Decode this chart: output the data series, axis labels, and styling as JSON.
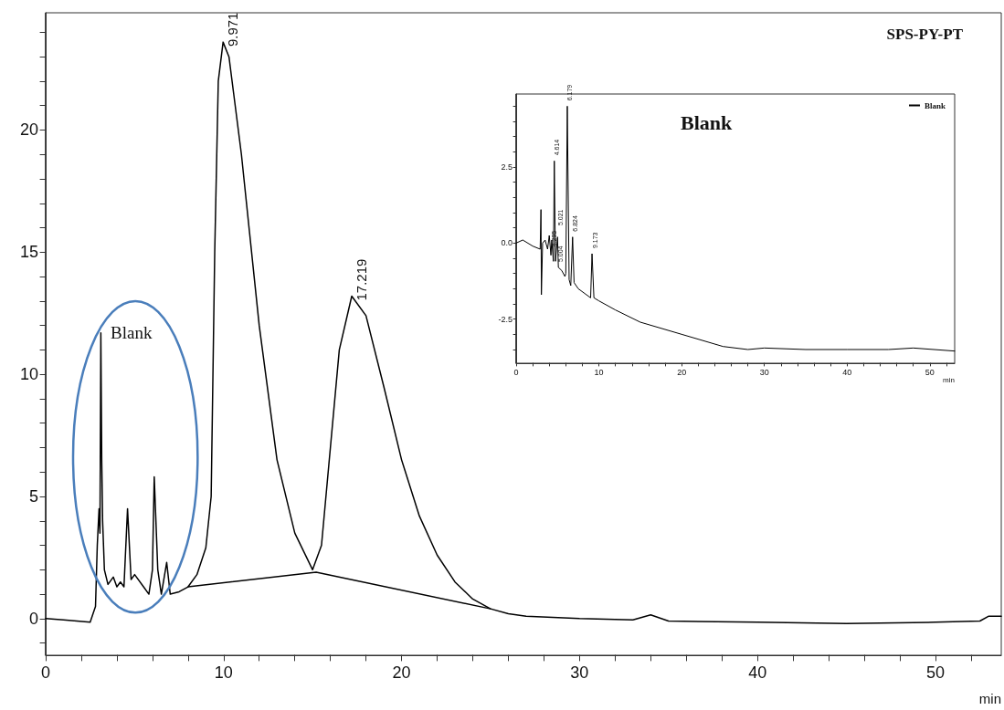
{
  "chart_data": [
    {
      "type": "line",
      "title": "SPS-PY-PT",
      "xlabel": "min",
      "xlim": [
        0,
        53.7
      ],
      "ylim": [
        -1.5,
        24.8
      ],
      "xticks": [
        0,
        {
          "value": 2,
          "label": null
        },
        {
          "value": 4,
          "label": null
        },
        {
          "value": 6,
          "label": null
        },
        {
          "value": 8,
          "label": null
        },
        10,
        {
          "value": 12,
          "label": null
        },
        {
          "value": 14,
          "label": null
        },
        {
          "value": 16,
          "label": null
        },
        {
          "value": 18,
          "label": null
        },
        20,
        {
          "value": 22,
          "label": null
        },
        {
          "value": 24,
          "label": null
        },
        {
          "value": 26,
          "label": null
        },
        {
          "value": 28,
          "label": null
        },
        30,
        {
          "value": 32,
          "label": null
        },
        {
          "value": 34,
          "label": null
        },
        {
          "value": 36,
          "label": null
        },
        {
          "value": 38,
          "label": null
        },
        40,
        {
          "value": 42,
          "label": null
        },
        {
          "value": 44,
          "label": null
        },
        {
          "value": 46,
          "label": null
        },
        {
          "value": 48,
          "label": null
        },
        50,
        {
          "value": 52,
          "label": null
        }
      ],
      "yticks": [
        {
          "value": -1,
          "label": null
        },
        0,
        {
          "value": 1,
          "label": null
        },
        {
          "value": 2,
          "label": null
        },
        {
          "value": 3,
          "label": null
        },
        {
          "value": 4,
          "label": null
        },
        5,
        {
          "value": 6,
          "label": null
        },
        {
          "value": 7,
          "label": null
        },
        {
          "value": 8,
          "label": null
        },
        {
          "value": 9,
          "label": null
        },
        10,
        {
          "value": 11,
          "label": null
        },
        {
          "value": 12,
          "label": null
        },
        {
          "value": 13,
          "label": null
        },
        {
          "value": 14,
          "label": null
        },
        15,
        {
          "value": 16,
          "label": null
        },
        {
          "value": 17,
          "label": null
        },
        {
          "value": 18,
          "label": null
        },
        {
          "value": 19,
          "label": null
        },
        20,
        {
          "value": 21,
          "label": null
        },
        {
          "value": 22,
          "label": null
        },
        {
          "value": 23,
          "label": null
        },
        {
          "value": 24,
          "label": null
        }
      ],
      "grid": false,
      "legend": false,
      "marker": "none",
      "line_style": "solid",
      "series": [
        {
          "color": "#000000",
          "x": [
            0,
            1,
            2.5,
            2.8,
            2.9,
            3.0,
            3.05,
            3.1,
            3.15,
            3.2,
            3.3,
            3.5,
            3.8,
            4.0,
            4.2,
            4.4,
            4.6,
            4.8,
            5.0,
            5.5,
            5.8,
            6.0,
            6.1,
            6.3,
            6.5,
            6.8,
            7.0,
            7.5,
            8.0,
            8.5,
            9.0,
            9.3,
            9.5,
            9.7,
            9.97,
            10.3,
            11,
            12,
            13,
            14,
            15,
            15.5,
            16,
            16.5,
            17.2,
            18,
            19,
            20,
            21,
            22,
            23,
            24,
            25,
            26,
            27,
            30,
            33,
            34,
            35,
            40,
            45,
            50,
            52.5,
            53,
            53.7
          ],
          "values": [
            0,
            -0.05,
            -0.15,
            0.5,
            3,
            4.5,
            3.5,
            11.7,
            6.5,
            4,
            2,
            1.4,
            1.7,
            1.3,
            1.5,
            1.3,
            4.5,
            1.6,
            1.8,
            1.3,
            1.0,
            2,
            5.8,
            2,
            1.0,
            2.3,
            1.0,
            1.1,
            1.3,
            1.8,
            2.9,
            5,
            15,
            22,
            23.6,
            23.0,
            19,
            12,
            6.5,
            3.5,
            2.0,
            3,
            7,
            11,
            13.2,
            12.4,
            9.5,
            6.5,
            4.2,
            2.6,
            1.5,
            0.8,
            0.4,
            0.2,
            0.1,
            0.0,
            -0.05,
            0.15,
            -0.1,
            -0.15,
            -0.2,
            -0.15,
            -0.1,
            0.1,
            0.1
          ]
        },
        {
          "color": "#000000",
          "x": [
            8,
            15.2,
            25
          ],
          "values": [
            1.3,
            1.9,
            0.4
          ]
        }
      ],
      "annotations": [
        {
          "text": "9.971",
          "x": 9.971,
          "y": 23.6
        },
        {
          "text": "17.219",
          "x": 17.219,
          "y": 13.2
        },
        "Blank"
      ]
    },
    {
      "type": "line",
      "title": "Blank",
      "xlabel": "min",
      "xlim": [
        0,
        53
      ],
      "ylim": [
        -3.95,
        4.9
      ],
      "xticks": [
        0,
        {
          "value": 2,
          "label": null
        },
        {
          "value": 4,
          "label": null
        },
        {
          "value": 6,
          "label": null
        },
        {
          "value": 8,
          "label": null
        },
        10,
        {
          "value": 12,
          "label": null
        },
        {
          "value": 14,
          "label": null
        },
        {
          "value": 16,
          "label": null
        },
        {
          "value": 18,
          "label": null
        },
        20,
        {
          "value": 22,
          "label": null
        },
        {
          "value": 24,
          "label": null
        },
        {
          "value": 26,
          "label": null
        },
        {
          "value": 28,
          "label": null
        },
        30,
        {
          "value": 32,
          "label": null
        },
        {
          "value": 34,
          "label": null
        },
        {
          "value": 36,
          "label": null
        },
        {
          "value": 38,
          "label": null
        },
        40,
        {
          "value": 42,
          "label": null
        },
        {
          "value": 44,
          "label": null
        },
        {
          "value": 46,
          "label": null
        },
        {
          "value": 48,
          "label": null
        },
        50,
        {
          "value": 52,
          "label": null
        }
      ],
      "yticks": [
        {
          "value": -3.5,
          "label": null
        },
        {
          "value": -3,
          "label": null
        },
        {
          "value": -2.5,
          "label": "-2.5"
        },
        {
          "value": -2,
          "label": null
        },
        {
          "value": -1.5,
          "label": null
        },
        {
          "value": -1,
          "label": null
        },
        {
          "value": -0.5,
          "label": null
        },
        {
          "value": 0,
          "label": "0.0"
        },
        {
          "value": 0.5,
          "label": null
        },
        {
          "value": 1,
          "label": null
        },
        {
          "value": 1.5,
          "label": null
        },
        {
          "value": 2,
          "label": null
        },
        {
          "value": 2.5,
          "label": "2.5"
        },
        {
          "value": 3,
          "label": null
        },
        {
          "value": 3.5,
          "label": null
        },
        {
          "value": 4,
          "label": null
        },
        {
          "value": 4.5,
          "label": null
        }
      ],
      "grid": false,
      "legend": "top right",
      "marker": "none",
      "line_style": "solid",
      "series": [
        {
          "name": "Blank",
          "color": "#000000",
          "x": [
            0,
            0.8,
            2,
            2.9,
            3.0,
            3.05,
            3.2,
            3.5,
            3.8,
            4.0,
            4.2,
            4.3,
            4.5,
            4.61,
            4.75,
            5.0,
            5.1,
            5.5,
            5.9,
            6.0,
            6.18,
            6.4,
            6.6,
            6.82,
            7.0,
            7.5,
            8.5,
            9.0,
            9.17,
            9.4,
            10,
            12,
            15,
            20,
            25,
            28,
            30,
            35,
            40,
            45,
            48,
            53
          ],
          "values": [
            0,
            0.1,
            -0.1,
            -0.2,
            1.1,
            -1.7,
            0.0,
            0.1,
            -0.2,
            0.25,
            -0.4,
            0.1,
            -0.6,
            2.7,
            -0.6,
            0.2,
            -0.8,
            -0.9,
            -1.1,
            -1.0,
            4.5,
            -1.2,
            -1.4,
            0.2,
            -1.3,
            -1.5,
            -1.7,
            -1.8,
            -0.35,
            -1.8,
            -1.9,
            -2.2,
            -2.6,
            -3.0,
            -3.4,
            -3.5,
            -3.45,
            -3.5,
            -3.5,
            -3.5,
            -3.45,
            -3.55
          ]
        }
      ],
      "annotations": [
        {
          "text": "4.295",
          "x": 4.295,
          "y": -0.3
        },
        {
          "text": "4.614",
          "x": 4.614,
          "y": 2.7
        },
        {
          "text": "5.004",
          "x": 5.004,
          "y": -0.8
        },
        {
          "text": "5.021",
          "x": 5.021,
          "y": 0.4
        },
        {
          "text": "6.179",
          "x": 6.179,
          "y": 4.5
        },
        {
          "text": "6.824",
          "x": 6.824,
          "y": 0.2
        },
        {
          "text": "9.173",
          "x": 9.173,
          "y": -0.35
        }
      ]
    }
  ]
}
